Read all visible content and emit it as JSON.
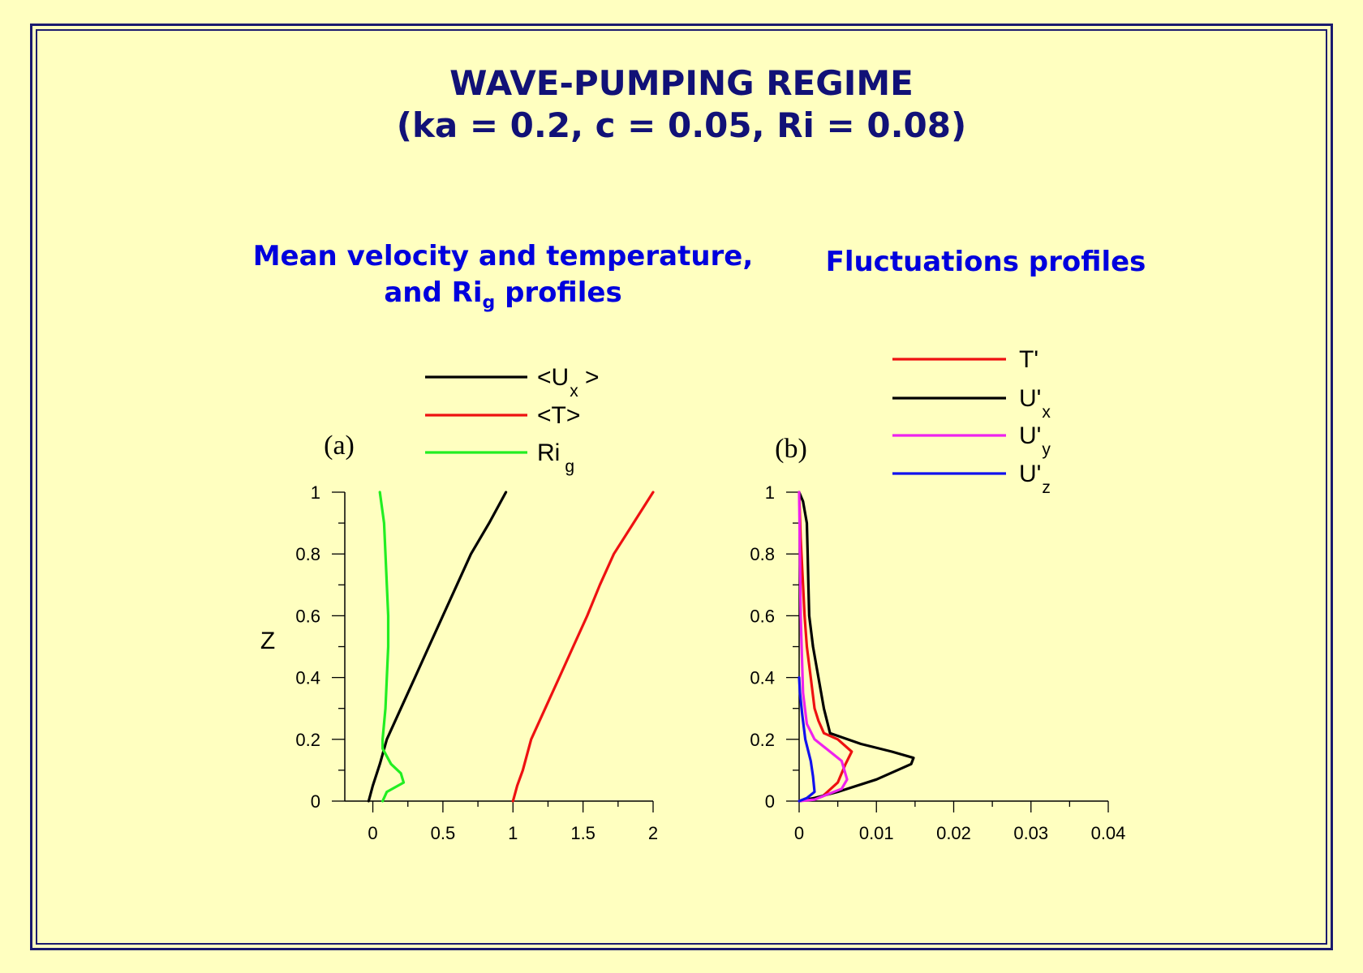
{
  "slide": {
    "title_line1": "WAVE-PUMPING REGIME",
    "title_line2": "(ka = 0.2, c = 0.05, Ri = 0.08)",
    "left_heading_line1": "Mean velocity and temperature,",
    "left_heading_line2_a": "and Ri",
    "left_heading_line2_sub": "g",
    "left_heading_line2_b": " profiles",
    "right_heading": "Fluctuations profiles"
  },
  "colors": {
    "background": "#ffffc0",
    "frame": "#1a1a6e",
    "title": "#111177",
    "heading": "#0000dd",
    "black": "#000000",
    "red": "#ee1111",
    "green": "#22ee22",
    "magenta": "#ee22ee",
    "blue": "#1111ee"
  },
  "chart_data": [
    {
      "type": "line",
      "panel_label": "(a)",
      "ylabel": "Z",
      "xlabel": "",
      "xlim": [
        -0.2,
        2
      ],
      "ylim": [
        0,
        1
      ],
      "xticks": [
        "0",
        "0.5",
        "1",
        "1.5",
        "2"
      ],
      "yticks": [
        "0",
        "0.2",
        "0.4",
        "0.6",
        "0.8",
        "1"
      ],
      "legend_position": "top",
      "series": [
        {
          "name": "<U",
          "sub": "x",
          "suffix": " >",
          "color_key": "black",
          "points": [
            [
              -0.03,
              0
            ],
            [
              0.0,
              0.05
            ],
            [
              0.05,
              0.12
            ],
            [
              0.1,
              0.2
            ],
            [
              0.2,
              0.3
            ],
            [
              0.3,
              0.4
            ],
            [
              0.4,
              0.5
            ],
            [
              0.5,
              0.6
            ],
            [
              0.6,
              0.7
            ],
            [
              0.7,
              0.8
            ],
            [
              0.83,
              0.9
            ],
            [
              0.95,
              1.0
            ]
          ]
        },
        {
          "name": "<T>",
          "sub": "",
          "suffix": "",
          "color_key": "red",
          "points": [
            [
              1.0,
              0
            ],
            [
              1.03,
              0.05
            ],
            [
              1.07,
              0.1
            ],
            [
              1.13,
              0.2
            ],
            [
              1.23,
              0.3
            ],
            [
              1.33,
              0.4
            ],
            [
              1.43,
              0.5
            ],
            [
              1.53,
              0.6
            ],
            [
              1.62,
              0.7
            ],
            [
              1.72,
              0.8
            ],
            [
              1.86,
              0.9
            ],
            [
              2.0,
              1.0
            ]
          ]
        },
        {
          "name": "Ri",
          "sub": "g",
          "suffix": "",
          "color_key": "green",
          "points": [
            [
              0.07,
              0
            ],
            [
              0.1,
              0.03
            ],
            [
              0.22,
              0.06
            ],
            [
              0.2,
              0.09
            ],
            [
              0.13,
              0.12
            ],
            [
              0.07,
              0.17
            ],
            [
              0.07,
              0.2
            ],
            [
              0.09,
              0.3
            ],
            [
              0.1,
              0.4
            ],
            [
              0.11,
              0.5
            ],
            [
              0.11,
              0.6
            ],
            [
              0.1,
              0.7
            ],
            [
              0.09,
              0.8
            ],
            [
              0.08,
              0.9
            ],
            [
              0.05,
              1.0
            ]
          ]
        }
      ]
    },
    {
      "type": "line",
      "panel_label": "(b)",
      "ylabel": "",
      "xlabel": "",
      "xlim": [
        0,
        0.04
      ],
      "ylim": [
        0,
        1
      ],
      "xticks": [
        "0",
        "0.01",
        "0.02",
        "0.03",
        "0.04"
      ],
      "yticks": [
        "0",
        "0.2",
        "0.4",
        "0.6",
        "0.8",
        "1"
      ],
      "legend_position": "top-right",
      "series": [
        {
          "name": "T'",
          "sub": "",
          "suffix": "",
          "color_key": "red",
          "points": [
            [
              0,
              0
            ],
            [
              0.003,
              0.015
            ],
            [
              0.005,
              0.06
            ],
            [
              0.006,
              0.12
            ],
            [
              0.0068,
              0.16
            ],
            [
              0.005,
              0.2
            ],
            [
              0.0032,
              0.22
            ],
            [
              0.0025,
              0.26
            ],
            [
              0.002,
              0.3
            ],
            [
              0.0015,
              0.4
            ],
            [
              0.001,
              0.5
            ],
            [
              0.0007,
              0.6
            ],
            [
              0.0005,
              0.7
            ],
            [
              0.0002,
              0.85
            ],
            [
              0,
              1.0
            ]
          ]
        },
        {
          "name": "U'",
          "sub": "x",
          "suffix": "",
          "color_key": "black",
          "points": [
            [
              0,
              0
            ],
            [
              0.002,
              0.01
            ],
            [
              0.005,
              0.03
            ],
            [
              0.01,
              0.07
            ],
            [
              0.0145,
              0.12
            ],
            [
              0.0148,
              0.14
            ],
            [
              0.012,
              0.16
            ],
            [
              0.008,
              0.185
            ],
            [
              0.004,
              0.22
            ],
            [
              0.0032,
              0.3
            ],
            [
              0.0025,
              0.4
            ],
            [
              0.0018,
              0.5
            ],
            [
              0.0013,
              0.6
            ],
            [
              0.0012,
              0.7
            ],
            [
              0.0011,
              0.8
            ],
            [
              0.001,
              0.9
            ],
            [
              0.0005,
              0.97
            ],
            [
              0,
              1.0
            ]
          ]
        },
        {
          "name": "U'",
          "sub": "y",
          "suffix": "",
          "color_key": "magenta",
          "points": [
            [
              0,
              0
            ],
            [
              0.002,
              0.005
            ],
            [
              0.0055,
              0.04
            ],
            [
              0.0062,
              0.07
            ],
            [
              0.0055,
              0.13
            ],
            [
              0.004,
              0.16
            ],
            [
              0.002,
              0.2
            ],
            [
              0.001,
              0.25
            ],
            [
              0.0005,
              0.35
            ],
            [
              0.0002,
              0.6
            ],
            [
              0,
              1.0
            ]
          ]
        },
        {
          "name": "U'",
          "sub": "z",
          "suffix": "",
          "color_key": "blue",
          "points": [
            [
              0,
              0
            ],
            [
              0.001,
              0.01
            ],
            [
              0.002,
              0.03
            ],
            [
              0.0018,
              0.08
            ],
            [
              0.0015,
              0.13
            ],
            [
              0.0008,
              0.2
            ],
            [
              0.0004,
              0.28
            ],
            [
              0.0001,
              0.35
            ],
            [
              0,
              0.4
            ]
          ]
        }
      ]
    }
  ]
}
